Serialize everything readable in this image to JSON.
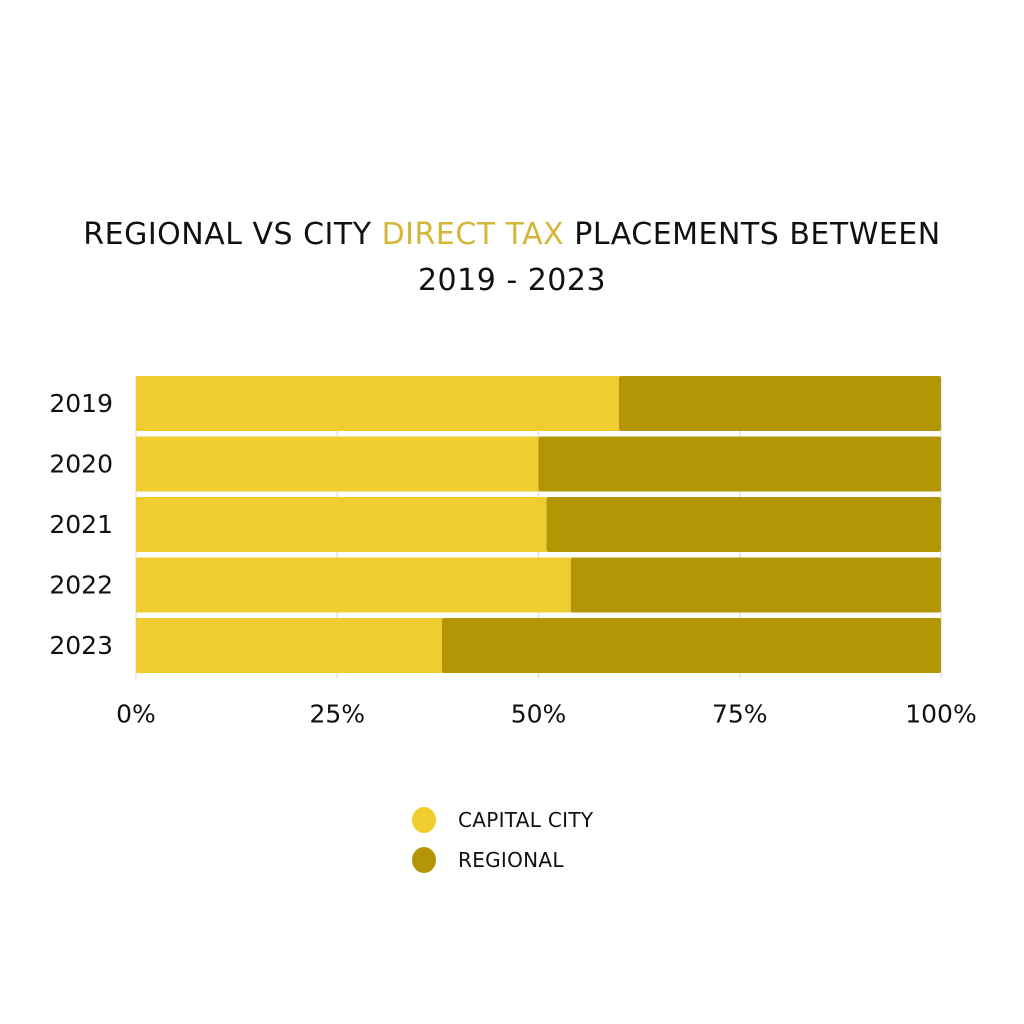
{
  "title": {
    "part1": "REGIONAL VS CITY ",
    "highlight": "DIRECT TAX",
    "part2": " PLACEMENTS BETWEEN",
    "line2": "2019 - 2023"
  },
  "colors": {
    "title_highlight": "#D4B63A",
    "capital_city": "#EFCD2E",
    "regional": "#B39506",
    "gridline": "#E3E3E3"
  },
  "chart_data": {
    "type": "bar",
    "orientation": "horizontal",
    "stacked": true,
    "percent": true,
    "title": "REGIONAL VS CITY DIRECT TAX PLACEMENTS BETWEEN 2019 - 2023",
    "categories": [
      "2019",
      "2020",
      "2021",
      "2022",
      "2023"
    ],
    "series": [
      {
        "name": "CAPITAL CITY",
        "values": [
          60,
          50,
          51,
          54,
          38
        ],
        "color": "#EFCD2E"
      },
      {
        "name": "REGIONAL",
        "values": [
          40,
          50,
          49,
          46,
          62
        ],
        "color": "#B39506"
      }
    ],
    "xlim": [
      0,
      100
    ],
    "xticks": [
      "0%",
      "25%",
      "50%",
      "75%",
      "100%"
    ],
    "grid": true,
    "legend_position": "bottom"
  }
}
